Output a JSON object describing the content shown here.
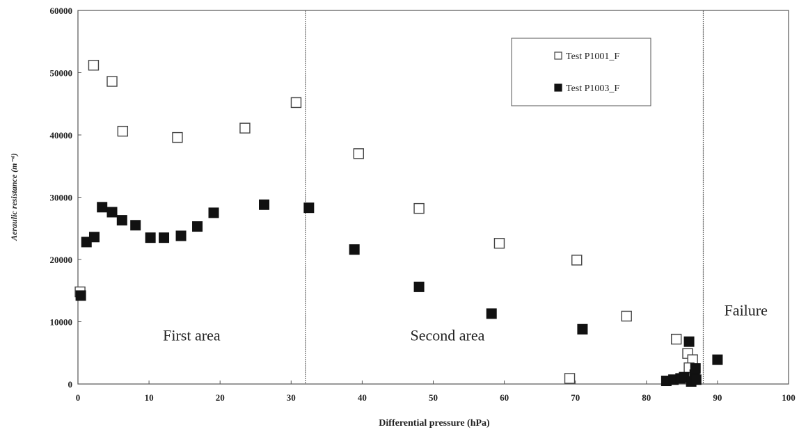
{
  "chart_data": {
    "type": "scatter",
    "xlabel": "Differential pressure (hPa)",
    "ylabel": "Aeraulic resistance (m⁻⁴)",
    "xlim": [
      0,
      100
    ],
    "ylim": [
      0,
      60000
    ],
    "x_ticks": [
      "0",
      "10",
      "20",
      "30",
      "40",
      "50",
      "60",
      "70",
      "80",
      "90",
      "100"
    ],
    "y_ticks": [
      "0",
      "10000",
      "20000",
      "30000",
      "40000",
      "50000",
      "60000"
    ],
    "grid": false,
    "legend_position": "top-right",
    "vertical_lines": [
      32,
      88
    ],
    "regions": [
      {
        "label": "First area",
        "x": 16,
        "y": 7000
      },
      {
        "label": "Second area",
        "x": 52,
        "y": 7000
      },
      {
        "label": "Failure",
        "x": 94,
        "y": 11000
      }
    ],
    "series": [
      {
        "name": "Test P1001_F",
        "marker": "open-square",
        "points": [
          [
            0.3,
            14800
          ],
          [
            2.2,
            51200
          ],
          [
            4.8,
            48600
          ],
          [
            6.3,
            40600
          ],
          [
            14.0,
            39600
          ],
          [
            23.5,
            41100
          ],
          [
            30.7,
            45200
          ],
          [
            39.5,
            37000
          ],
          [
            48.0,
            28200
          ],
          [
            59.3,
            22600
          ],
          [
            70.2,
            19900
          ],
          [
            77.2,
            10900
          ],
          [
            84.2,
            7200
          ],
          [
            85.8,
            4900
          ],
          [
            86.5,
            3900
          ],
          [
            86.0,
            2600
          ],
          [
            69.2,
            900
          ]
        ]
      },
      {
        "name": "Test P1003_F",
        "marker": "filled-square",
        "points": [
          [
            0.4,
            14200
          ],
          [
            1.2,
            22800
          ],
          [
            2.3,
            23600
          ],
          [
            3.4,
            28400
          ],
          [
            4.8,
            27600
          ],
          [
            6.2,
            26300
          ],
          [
            8.1,
            25500
          ],
          [
            10.2,
            23500
          ],
          [
            12.1,
            23500
          ],
          [
            14.5,
            23800
          ],
          [
            16.8,
            25300
          ],
          [
            19.1,
            27500
          ],
          [
            26.2,
            28800
          ],
          [
            32.5,
            28300
          ],
          [
            38.9,
            21600
          ],
          [
            48.0,
            15600
          ],
          [
            58.2,
            11300
          ],
          [
            71.0,
            8800
          ],
          [
            82.8,
            500
          ],
          [
            83.8,
            700
          ],
          [
            84.8,
            900
          ],
          [
            85.3,
            1100
          ],
          [
            86.0,
            6800
          ],
          [
            86.3,
            400
          ],
          [
            86.8,
            1500
          ],
          [
            86.9,
            2500
          ],
          [
            87.0,
            700
          ],
          [
            90.0,
            3900
          ]
        ]
      }
    ]
  }
}
